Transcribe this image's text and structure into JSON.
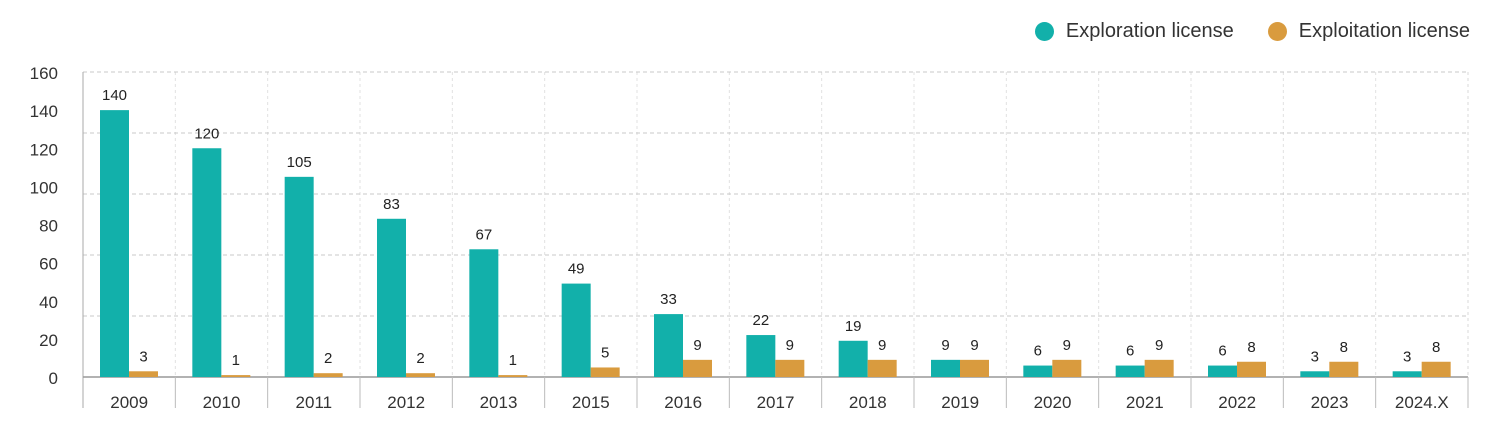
{
  "chart_data": {
    "type": "bar",
    "title": "",
    "xlabel": "",
    "ylabel": "",
    "ylim": [
      0,
      160
    ],
    "yticks": [
      0,
      20,
      40,
      60,
      80,
      100,
      120,
      140,
      160
    ],
    "gridlines": [
      32,
      64,
      96,
      128,
      160
    ],
    "grid": true,
    "legend_placement": "top-right",
    "categories": [
      "2009",
      "2010",
      "2011",
      "2012",
      "2013",
      "2015",
      "2016",
      "2017",
      "2018",
      "2019",
      "2020",
      "2021",
      "2022",
      "2023",
      "2024.X"
    ],
    "series": [
      {
        "name": "Exploration license",
        "color": "#12b0aa",
        "values": [
          140,
          120,
          105,
          83,
          67,
          49,
          33,
          22,
          19,
          9,
          6,
          6,
          6,
          3,
          3
        ]
      },
      {
        "name": "Exploitation license",
        "color": "#d99b3e",
        "values": [
          3,
          1,
          2,
          2,
          1,
          5,
          9,
          9,
          9,
          9,
          9,
          9,
          8,
          8,
          8
        ]
      }
    ]
  }
}
